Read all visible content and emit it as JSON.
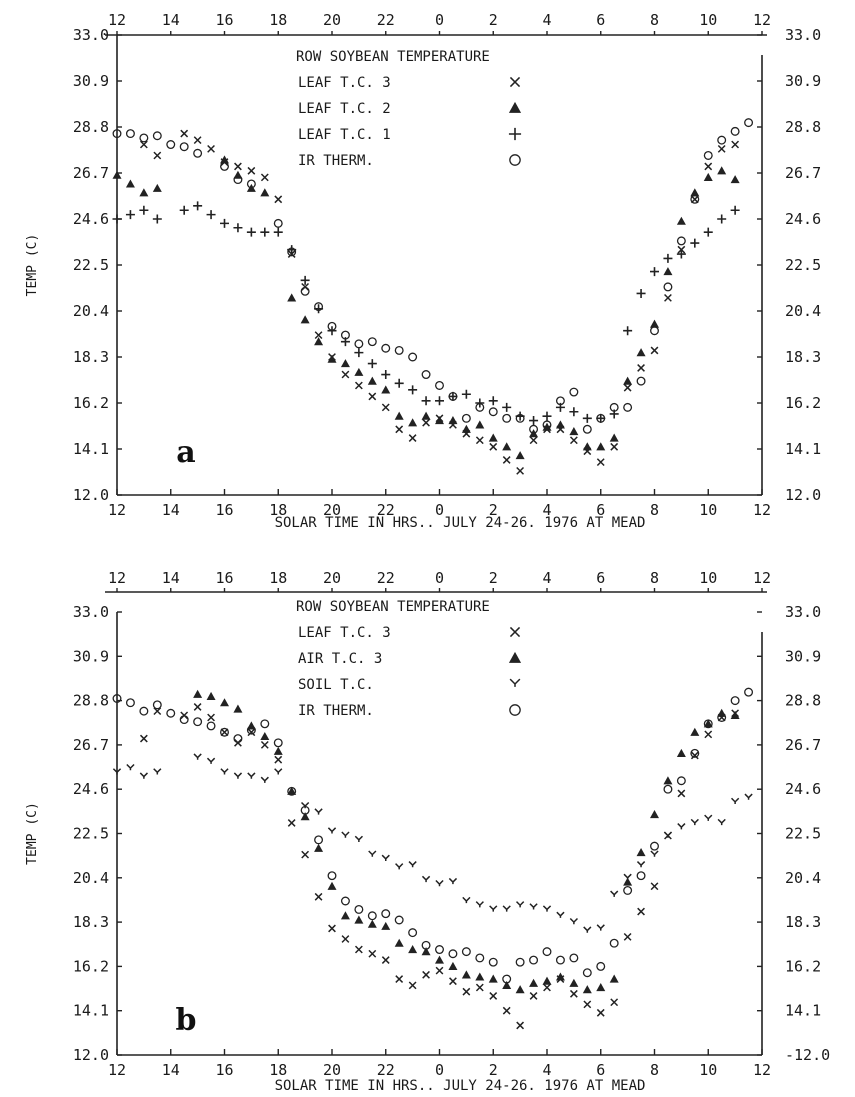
{
  "chart_data": [
    {
      "type": "scatter",
      "panel_label": "a",
      "title": "ROW SOYBEAN TEMPERATURE",
      "xlabel": "SOLAR TIME IN HRS.. JULY 24-26. 1976 AT MEAD",
      "ylabel": "TEMP (C)",
      "y_ticks": [
        "33.0",
        "30.9",
        "28.8",
        "26.7",
        "24.6",
        "22.5",
        "20.4",
        "18.3",
        "16.2",
        "14.1",
        "12.0"
      ],
      "ylim": [
        12.0,
        33.0
      ],
      "x_ticks": [
        "12",
        "14",
        "16",
        "18",
        "20",
        "22",
        "0",
        "2",
        "4",
        "6",
        "8",
        "10",
        "12"
      ],
      "x_range_hours": [
        12,
        36
      ],
      "legend_position": "top-center",
      "series": [
        {
          "name": "LEAF T.C. 3",
          "marker": "x",
          "x": [
            13,
            13.5,
            14.5,
            15,
            15.5,
            16,
            16.5,
            17,
            17.5,
            18,
            18.5,
            19,
            19.5,
            20,
            20.5,
            21,
            21.5,
            22,
            22.5,
            23,
            23.5,
            24,
            24.5,
            25,
            25.5,
            26,
            26.5,
            27,
            27.5,
            28,
            28.5,
            29,
            29.5,
            30,
            30.5,
            31,
            31.5,
            32,
            32.5,
            33,
            33.5,
            34,
            34.5,
            35
          ],
          "y": [
            28.0,
            27.5,
            28.5,
            28.2,
            27.8,
            27.2,
            27.0,
            26.8,
            26.5,
            25.5,
            23.0,
            21.5,
            19.3,
            18.3,
            17.5,
            17.0,
            16.5,
            16.0,
            15.0,
            14.6,
            15.3,
            15.5,
            15.2,
            14.8,
            14.5,
            14.2,
            13.6,
            13.1,
            14.5,
            15.0,
            15.0,
            14.5,
            14.0,
            13.5,
            14.2,
            16.9,
            17.8,
            18.6,
            21.0,
            23.2,
            25.5,
            27.0,
            27.8,
            28.0
          ]
        },
        {
          "name": "LEAF T.C. 2",
          "marker": "triangle",
          "x": [
            12,
            12.5,
            13,
            13.5,
            16,
            16.5,
            17,
            17.5,
            18.5,
            19,
            19.5,
            20,
            20.5,
            21,
            21.5,
            22,
            22.5,
            23,
            23.5,
            24,
            24.5,
            25,
            25.5,
            26,
            26.5,
            27,
            27.5,
            28,
            28.5,
            29,
            29.5,
            30,
            30.5,
            31,
            31.5,
            32,
            32.5,
            33,
            33.5,
            34,
            34.5,
            35
          ],
          "y": [
            26.6,
            26.2,
            25.8,
            26.0,
            27.3,
            26.6,
            26.0,
            25.8,
            21.0,
            20.0,
            19.0,
            18.2,
            18.0,
            17.6,
            17.2,
            16.8,
            15.6,
            15.3,
            15.6,
            15.4,
            15.4,
            15.0,
            15.2,
            14.6,
            14.2,
            13.8,
            14.8,
            15.1,
            15.2,
            14.9,
            14.2,
            14.2,
            14.6,
            17.2,
            18.5,
            19.8,
            22.2,
            24.5,
            25.8,
            26.5,
            26.8,
            26.4
          ]
        },
        {
          "name": "LEAF T.C. 1",
          "marker": "plus",
          "x": [
            12,
            12.5,
            13,
            13.5,
            14.5,
            15,
            15.5,
            16,
            16.5,
            17,
            17.5,
            18,
            18.5,
            19,
            19.5,
            20,
            20.5,
            21,
            21.5,
            22,
            22.5,
            23,
            23.5,
            24,
            24.5,
            25,
            25.5,
            26,
            26.5,
            27,
            27.5,
            28,
            28.5,
            29,
            29.5,
            30,
            30.5,
            31,
            31.5,
            32,
            32.5,
            33,
            33.5,
            34,
            34.5,
            35
          ],
          "y": [
            24.6,
            24.8,
            25.0,
            24.6,
            25.0,
            25.2,
            24.8,
            24.4,
            24.2,
            24.0,
            24.0,
            24.0,
            23.2,
            21.8,
            20.5,
            19.5,
            19.0,
            18.5,
            18.0,
            17.5,
            17.1,
            16.8,
            16.3,
            16.3,
            16.5,
            16.6,
            16.2,
            16.3,
            16.0,
            15.6,
            15.4,
            15.6,
            16.0,
            15.8,
            15.5,
            15.5,
            15.7,
            19.5,
            21.2,
            22.2,
            22.8,
            23.0,
            23.5,
            24.0,
            24.6,
            25.0
          ]
        },
        {
          "name": "IR THERM.",
          "marker": "circle",
          "x": [
            12,
            12.5,
            13,
            13.5,
            14,
            14.5,
            15,
            16,
            16.5,
            17,
            18,
            18.5,
            19,
            19.5,
            20,
            20.5,
            21,
            21.5,
            22,
            22.5,
            23,
            23.5,
            24,
            24.5,
            25,
            25.5,
            26,
            26.5,
            27,
            27.5,
            28,
            28.5,
            29,
            29.5,
            30,
            30.5,
            31,
            31.5,
            32,
            32.5,
            33,
            33.5,
            34,
            34.5,
            35,
            35.5
          ],
          "y": [
            28.5,
            28.5,
            28.3,
            28.4,
            28.0,
            27.9,
            27.6,
            27.0,
            26.4,
            26.2,
            24.4,
            23.1,
            21.3,
            20.6,
            19.7,
            19.3,
            18.9,
            19.0,
            18.7,
            18.6,
            18.3,
            17.5,
            17.0,
            16.5,
            15.5,
            16.0,
            15.8,
            15.5,
            15.5,
            15.0,
            15.2,
            16.3,
            16.7,
            15.0,
            15.5,
            16.0,
            16.0,
            17.2,
            19.5,
            21.5,
            23.6,
            25.5,
            27.5,
            28.2,
            28.6,
            29.0
          ]
        }
      ]
    },
    {
      "type": "scatter",
      "panel_label": "b",
      "title": "ROW SOYBEAN TEMPERATURE",
      "xlabel": "SOLAR TIME IN HRS.. JULY 24-26. 1976 AT MEAD",
      "ylabel": "TEMP (C)",
      "y_ticks": [
        "33.0",
        "30.9",
        "28.8",
        "26.7",
        "24.6",
        "22.5",
        "20.4",
        "18.3",
        "16.2",
        "14.1",
        "12.0"
      ],
      "y_tick_right_last": "-12.0",
      "ylim": [
        12.0,
        33.0
      ],
      "x_ticks": [
        "12",
        "14",
        "16",
        "18",
        "20",
        "22",
        "0",
        "2",
        "4",
        "6",
        "8",
        "10",
        "12"
      ],
      "x_range_hours": [
        12,
        36
      ],
      "legend_position": "top-center",
      "series": [
        {
          "name": "LEAF T.C. 3",
          "marker": "x",
          "x": [
            13,
            13.5,
            14.5,
            15,
            15.5,
            16,
            16.5,
            17,
            17.5,
            18,
            18.5,
            19,
            19.5,
            20,
            20.5,
            21,
            21.5,
            22,
            22.5,
            23,
            23.5,
            24,
            24.5,
            25,
            25.5,
            26,
            26.5,
            27,
            27.5,
            28,
            28.5,
            29,
            29.5,
            30,
            30.5,
            31,
            31.5,
            32,
            32.5,
            33,
            33.5,
            34,
            34.5,
            35
          ],
          "y": [
            27.0,
            28.3,
            28.1,
            28.5,
            28.0,
            27.3,
            26.8,
            27.3,
            26.7,
            26.0,
            23.0,
            21.5,
            19.5,
            18.0,
            17.5,
            17.0,
            16.8,
            16.5,
            15.6,
            15.3,
            15.8,
            16.0,
            15.5,
            15.0,
            15.2,
            14.8,
            14.1,
            13.4,
            14.8,
            15.2,
            15.6,
            14.9,
            14.4,
            14.0,
            14.5,
            17.6,
            18.8,
            20.0,
            22.4,
            24.4,
            26.2,
            27.2,
            28.0,
            28.2
          ]
        },
        {
          "name": "AIR T.C. 3",
          "marker": "triangle",
          "x": [
            15,
            15.5,
            16,
            16.5,
            17,
            17.5,
            18,
            18.5,
            19,
            19.5,
            20,
            20.5,
            21,
            21.5,
            22,
            22.5,
            23,
            23.5,
            24,
            24.5,
            25,
            25.5,
            26,
            26.5,
            27,
            27.5,
            28,
            28.5,
            29,
            29.5,
            30,
            30.5,
            31,
            31.5,
            32,
            32.5,
            33,
            33.5,
            34,
            34.5,
            35
          ],
          "y": [
            29.1,
            29.0,
            28.7,
            28.4,
            27.6,
            27.1,
            26.4,
            24.5,
            23.3,
            21.8,
            20.0,
            18.6,
            18.4,
            18.2,
            18.1,
            17.3,
            17.0,
            16.9,
            16.5,
            16.2,
            15.8,
            15.7,
            15.6,
            15.3,
            15.1,
            15.4,
            15.5,
            15.7,
            15.4,
            15.1,
            15.2,
            15.6,
            20.2,
            21.6,
            23.4,
            25.0,
            26.3,
            27.3,
            27.7,
            28.2,
            28.1
          ]
        },
        {
          "name": "SOIL T.C.",
          "marker": "y",
          "x": [
            12,
            12.5,
            13,
            13.5,
            15,
            15.5,
            16,
            16.5,
            17,
            17.5,
            18,
            19,
            19.5,
            20,
            20.5,
            21,
            21.5,
            22,
            22.5,
            23,
            23.5,
            24,
            24.5,
            25,
            25.5,
            26,
            26.5,
            27,
            27.5,
            28,
            28.5,
            29,
            29.5,
            30,
            30.5,
            31,
            31.5,
            32,
            32.5,
            33,
            33.5,
            34,
            34.5,
            35,
            35.5
          ],
          "y": [
            25.4,
            25.6,
            25.2,
            25.4,
            26.1,
            25.9,
            25.4,
            25.2,
            25.2,
            25.0,
            25.4,
            23.8,
            23.5,
            22.6,
            22.4,
            22.2,
            21.5,
            21.3,
            20.9,
            21.0,
            20.3,
            20.1,
            20.2,
            19.3,
            19.1,
            18.9,
            18.9,
            19.1,
            19.0,
            18.9,
            18.6,
            18.3,
            17.9,
            18.0,
            19.6,
            20.4,
            21.0,
            21.5,
            22.4,
            22.8,
            23.0,
            23.2,
            23.0,
            24.0,
            24.2
          ]
        },
        {
          "name": "IR THERM.",
          "marker": "circle",
          "x": [
            12,
            12.5,
            13,
            13.5,
            14,
            14.5,
            15,
            15.5,
            16,
            16.5,
            17,
            17.5,
            18,
            18.5,
            19,
            19.5,
            20,
            20.5,
            21,
            21.5,
            22,
            22.5,
            23,
            23.5,
            24,
            24.5,
            25,
            25.5,
            26,
            26.5,
            27,
            27.5,
            28,
            28.5,
            29,
            29.5,
            30,
            30.5,
            31,
            31.5,
            32,
            32.5,
            33,
            33.5,
            34,
            34.5,
            35,
            35.5
          ],
          "y": [
            28.9,
            28.7,
            28.3,
            28.6,
            28.2,
            27.9,
            27.8,
            27.6,
            27.3,
            27.0,
            27.4,
            27.7,
            26.8,
            24.5,
            23.6,
            22.2,
            20.5,
            19.3,
            18.9,
            18.6,
            18.7,
            18.4,
            17.8,
            17.2,
            17.0,
            16.8,
            16.9,
            16.6,
            16.4,
            15.6,
            16.4,
            16.5,
            16.9,
            16.5,
            16.6,
            15.9,
            16.2,
            17.3,
            19.8,
            20.5,
            21.9,
            24.6,
            25.0,
            26.3,
            27.7,
            28.0,
            28.8,
            29.2
          ]
        }
      ]
    }
  ]
}
